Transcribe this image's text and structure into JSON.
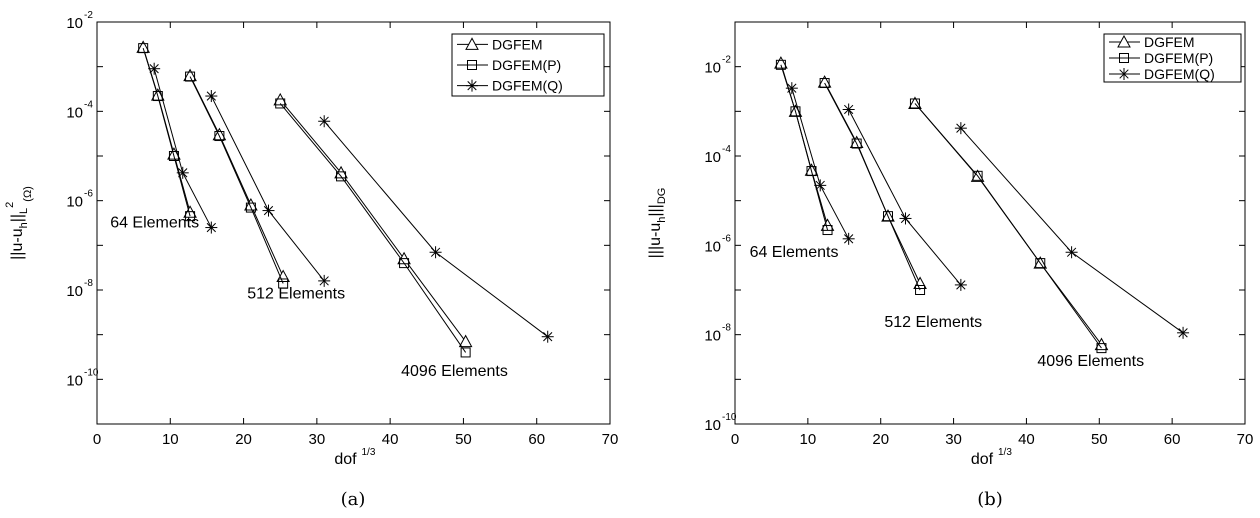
{
  "chart_data": [
    {
      "type": "line",
      "caption": "(a)",
      "xlabel": "dof",
      "xlabel_sup": "1/3",
      "ylabel": "||u-u",
      "ylabel_sub1": "h",
      "ylabel_mid": "||",
      "ylabel_sub2": "L",
      "ylabel_sup2": "2",
      "ylabel_sub3": "(Ω)",
      "x_scale": "linear",
      "y_scale": "log",
      "xlim": [
        0,
        70
      ],
      "ylim": [
        1e-11,
        0.01
      ],
      "x_ticks": [
        0,
        10,
        20,
        30,
        40,
        50,
        60,
        70
      ],
      "y_ticks": [
        -10,
        -8,
        -6,
        -4,
        -2
      ],
      "legend": [
        "DGFEM",
        "DGFEM(P)",
        "DGFEM(Q)"
      ],
      "legend_position": "top-right",
      "annotations": [
        {
          "text": "64 Elements",
          "x": 1.8,
          "y": 2.5e-07
        },
        {
          "text": "512 Elements",
          "x": 20.5,
          "y": 6.5e-09
        },
        {
          "text": "4096 Elements",
          "x": 41.5,
          "y": 1.2e-10
        }
      ],
      "series": [
        {
          "name": "DGFEM",
          "marker": "triangle",
          "groups": [
            {
              "x": [
                6.3,
                8.3,
                10.5,
                12.7
              ],
              "y": [
                0.0027,
                0.00023,
                1.1e-05,
                5.5e-07
              ]
            },
            {
              "x": [
                12.7,
                16.7,
                21.0,
                25.4
              ],
              "y": [
                0.00063,
                3e-05,
                8e-07,
                2e-08
              ]
            },
            {
              "x": [
                25.0,
                33.3,
                41.9,
                50.3
              ],
              "y": [
                0.00018,
                4.2e-06,
                5e-08,
                7e-10
              ]
            }
          ]
        },
        {
          "name": "DGFEM(P)",
          "marker": "square",
          "groups": [
            {
              "x": [
                6.3,
                8.3,
                10.5,
                12.7
              ],
              "y": [
                0.0026,
                0.00022,
                1e-05,
                4.5e-07
              ]
            },
            {
              "x": [
                12.7,
                16.7,
                21.0,
                25.4
              ],
              "y": [
                0.0006,
                2.8e-05,
                7e-07,
                1.4e-08
              ]
            },
            {
              "x": [
                25.0,
                33.3,
                41.9,
                50.3
              ],
              "y": [
                0.00015,
                3.5e-06,
                4e-08,
                4e-10
              ]
            }
          ]
        },
        {
          "name": "DGFEM(Q)",
          "marker": "star",
          "groups": [
            {
              "x": [
                7.8,
                11.7,
                15.6
              ],
              "y": [
                0.0009,
                4.2e-06,
                2.5e-07
              ]
            },
            {
              "x": [
                15.6,
                23.4,
                31.0
              ],
              "y": [
                0.00022,
                6e-07,
                1.6e-08
              ]
            },
            {
              "x": [
                31.0,
                46.2,
                61.5
              ],
              "y": [
                6e-05,
                7e-08,
                9e-10
              ]
            }
          ]
        }
      ]
    },
    {
      "type": "line",
      "caption": "(b)",
      "xlabel": "dof",
      "xlabel_sup": "1/3",
      "ylabel": "|||u-u",
      "ylabel_sub1": "h",
      "ylabel_mid": "|||",
      "ylabel_sub2": "DG",
      "x_scale": "linear",
      "y_scale": "log",
      "xlim": [
        0,
        70
      ],
      "ylim": [
        1e-10,
        0.1
      ],
      "x_ticks": [
        0,
        10,
        20,
        30,
        40,
        50,
        60,
        70
      ],
      "y_ticks": [
        -10,
        -8,
        -6,
        -4,
        -2
      ],
      "legend": [
        "DGFEM",
        "DGFEM(P)",
        "DGFEM(Q)"
      ],
      "legend_position": "top-right",
      "annotations": [
        {
          "text": "64 Elements",
          "x": 2.0,
          "y": 5.5e-07
        },
        {
          "text": "512 Elements",
          "x": 20.5,
          "y": 1.5e-08
        },
        {
          "text": "4096 Elements",
          "x": 41.5,
          "y": 2e-09
        }
      ],
      "series": [
        {
          "name": "DGFEM",
          "marker": "triangle",
          "groups": [
            {
              "x": [
                6.3,
                8.3,
                10.5,
                12.7
              ],
              "y": [
                0.012,
                0.001,
                4.8e-05,
                2.8e-06
              ]
            },
            {
              "x": [
                12.3,
                16.7,
                21.0,
                25.4
              ],
              "y": [
                0.0045,
                0.0002,
                4.5e-06,
                1.4e-07
              ]
            },
            {
              "x": [
                24.7,
                33.3,
                41.9,
                50.3
              ],
              "y": [
                0.0015,
                3.5e-05,
                4e-07,
                6e-09
              ]
            }
          ]
        },
        {
          "name": "DGFEM(P)",
          "marker": "square",
          "groups": [
            {
              "x": [
                6.3,
                8.3,
                10.5,
                12.7
              ],
              "y": [
                0.011,
                0.001,
                4.6e-05,
                2.2e-06
              ]
            },
            {
              "x": [
                12.3,
                16.7,
                21.0,
                25.4
              ],
              "y": [
                0.0043,
                0.00019,
                4.5e-06,
                1e-07
              ]
            },
            {
              "x": [
                24.7,
                33.3,
                41.9,
                50.3
              ],
              "y": [
                0.0015,
                3.6e-05,
                4e-07,
                5e-09
              ]
            }
          ]
        },
        {
          "name": "DGFEM(Q)",
          "marker": "star",
          "groups": [
            {
              "x": [
                7.8,
                11.7,
                15.6
              ],
              "y": [
                0.0033,
                2.2e-05,
                1.4e-06
              ]
            },
            {
              "x": [
                15.6,
                23.4,
                31.0
              ],
              "y": [
                0.0011,
                4e-06,
                1.3e-07
              ]
            },
            {
              "x": [
                31.0,
                46.2,
                61.5
              ],
              "y": [
                0.00042,
                7e-07,
                1.1e-08
              ]
            }
          ]
        }
      ]
    }
  ]
}
